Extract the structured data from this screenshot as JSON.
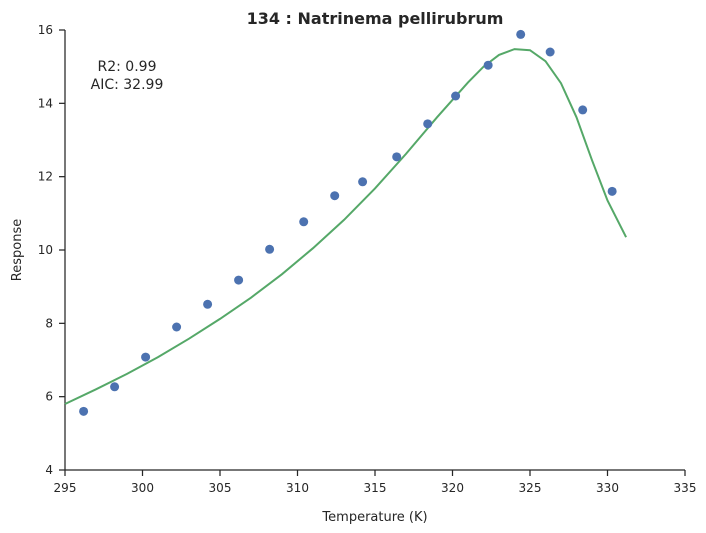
{
  "chart_data": {
    "type": "scatter",
    "title": "134 : Natrinema pellirubrum",
    "xlabel": "Temperature (K)",
    "ylabel": "Response",
    "xlim": [
      295,
      335
    ],
    "ylim": [
      4,
      16
    ],
    "xticks": [
      295,
      300,
      305,
      310,
      315,
      320,
      325,
      330,
      335
    ],
    "yticks": [
      4,
      6,
      8,
      10,
      12,
      14,
      16
    ],
    "grid": false,
    "annotations": [
      "R2: 0.99",
      "AIC: 32.99"
    ],
    "colors": {
      "points": "#4c72b0",
      "fit": "#55a868",
      "axes": "#262626"
    },
    "series": [
      {
        "kind": "scatter",
        "x": [
          296.2,
          298.2,
          300.2,
          302.2,
          304.2,
          306.2,
          308.2,
          310.4,
          312.4,
          314.2,
          316.4,
          318.4,
          320.2,
          322.3,
          324.4,
          326.3,
          328.4,
          330.3
        ],
        "y": [
          5.6,
          6.27,
          7.08,
          7.9,
          8.52,
          9.18,
          10.02,
          10.77,
          11.48,
          11.86,
          12.54,
          13.44,
          14.2,
          15.04,
          15.88,
          15.4,
          13.82,
          11.6
        ]
      },
      {
        "kind": "line",
        "x": [
          295,
          297,
          299,
          301,
          303,
          305,
          307,
          309,
          311,
          313,
          315,
          317,
          319,
          321,
          322,
          323,
          324,
          325,
          326,
          327,
          328,
          329,
          330,
          331.2
        ],
        "y": [
          5.8,
          6.2,
          6.62,
          7.08,
          7.58,
          8.12,
          8.7,
          9.34,
          10.05,
          10.82,
          11.68,
          12.62,
          13.62,
          14.57,
          15.0,
          15.32,
          15.48,
          15.45,
          15.15,
          14.55,
          13.62,
          12.45,
          11.35,
          10.35
        ]
      }
    ]
  }
}
